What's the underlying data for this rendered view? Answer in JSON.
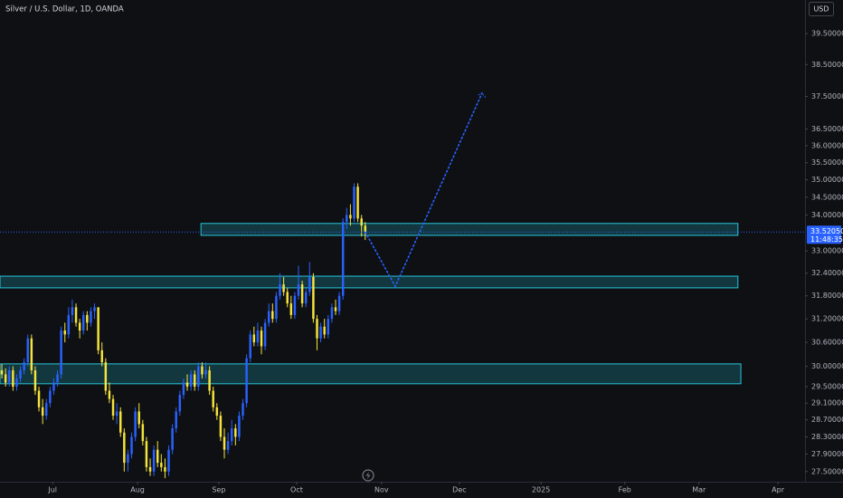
{
  "chart_data": {
    "type": "candlestick",
    "title": "Silver / U.S. Dollar, 1D, OANDA",
    "currency": "USD",
    "last_price_label": "33.52050",
    "countdown": "11:48:35",
    "up_color": "#2962ff",
    "down_color": "#f5e43b",
    "zone_color": "#26c6da",
    "projection_color": "#2962ff",
    "log_scale": true,
    "grid": false,
    "candles": [
      [
        29.9,
        30.05,
        29.7,
        29.8
      ],
      [
        29.8,
        29.95,
        29.5,
        29.6
      ],
      [
        29.6,
        30.0,
        29.5,
        29.9
      ],
      [
        29.9,
        30.0,
        29.4,
        29.5
      ],
      [
        29.5,
        29.8,
        29.4,
        29.7
      ],
      [
        29.7,
        30.0,
        29.6,
        29.9
      ],
      [
        29.9,
        30.2,
        29.8,
        30.1
      ],
      [
        30.1,
        30.8,
        30.0,
        30.7
      ],
      [
        30.7,
        30.8,
        29.8,
        29.9
      ],
      [
        29.9,
        30.0,
        29.3,
        29.4
      ],
      [
        29.4,
        29.5,
        28.9,
        29.0
      ],
      [
        29.0,
        29.2,
        28.6,
        28.8
      ],
      [
        28.8,
        29.2,
        28.7,
        29.1
      ],
      [
        29.1,
        29.5,
        29.0,
        29.4
      ],
      [
        29.4,
        29.7,
        29.3,
        29.6
      ],
      [
        29.6,
        29.9,
        29.5,
        29.8
      ],
      [
        29.8,
        31.0,
        29.7,
        30.9
      ],
      [
        30.9,
        31.1,
        30.6,
        30.8
      ],
      [
        30.8,
        31.5,
        30.7,
        31.3
      ],
      [
        31.3,
        31.7,
        31.1,
        31.5
      ],
      [
        31.5,
        31.6,
        31.0,
        31.1
      ],
      [
        31.1,
        31.2,
        30.7,
        30.9
      ],
      [
        30.9,
        31.4,
        30.8,
        31.3
      ],
      [
        31.3,
        31.4,
        30.9,
        31.1
      ],
      [
        31.1,
        31.5,
        31.0,
        31.4
      ],
      [
        31.4,
        31.6,
        31.2,
        31.5
      ],
      [
        31.5,
        31.5,
        30.3,
        30.4
      ],
      [
        30.4,
        30.6,
        30.0,
        30.1
      ],
      [
        30.1,
        30.2,
        29.3,
        29.4
      ],
      [
        29.4,
        29.6,
        29.1,
        29.2
      ],
      [
        29.2,
        29.3,
        28.7,
        28.8
      ],
      [
        28.8,
        29.1,
        28.6,
        28.9
      ],
      [
        28.9,
        29.0,
        28.3,
        28.4
      ],
      [
        28.4,
        28.5,
        27.5,
        27.7
      ],
      [
        27.7,
        28.0,
        27.5,
        27.9
      ],
      [
        27.9,
        28.4,
        27.8,
        28.3
      ],
      [
        28.3,
        29.0,
        28.2,
        28.9
      ],
      [
        28.9,
        29.1,
        28.5,
        28.6
      ],
      [
        28.6,
        28.7,
        28.1,
        28.2
      ],
      [
        28.2,
        28.3,
        27.5,
        27.6
      ],
      [
        27.6,
        27.8,
        27.4,
        27.5
      ],
      [
        27.5,
        28.1,
        27.4,
        28.0
      ],
      [
        28.0,
        28.2,
        27.6,
        27.7
      ],
      [
        27.7,
        27.9,
        27.5,
        27.6
      ],
      [
        27.6,
        27.8,
        27.35,
        27.5
      ],
      [
        27.5,
        28.1,
        27.4,
        28.0
      ],
      [
        28.0,
        28.6,
        27.9,
        28.5
      ],
      [
        28.5,
        29.0,
        28.4,
        28.9
      ],
      [
        28.9,
        29.4,
        28.8,
        29.3
      ],
      [
        29.3,
        29.7,
        29.2,
        29.6
      ],
      [
        29.6,
        29.8,
        29.4,
        29.5
      ],
      [
        29.5,
        29.9,
        29.4,
        29.8
      ],
      [
        29.8,
        29.9,
        29.4,
        29.5
      ],
      [
        29.5,
        30.1,
        29.4,
        30.0
      ],
      [
        30.0,
        30.1,
        29.7,
        29.8
      ],
      [
        29.8,
        30.1,
        29.7,
        29.9
      ],
      [
        29.9,
        30.0,
        29.3,
        29.4
      ],
      [
        29.4,
        29.5,
        28.9,
        29.0
      ],
      [
        29.0,
        29.1,
        28.7,
        28.8
      ],
      [
        28.8,
        28.9,
        28.2,
        28.3
      ],
      [
        28.3,
        28.5,
        27.8,
        28.0
      ],
      [
        28.0,
        28.4,
        27.9,
        28.2
      ],
      [
        28.2,
        28.7,
        28.1,
        28.5
      ],
      [
        28.5,
        28.6,
        28.1,
        28.3
      ],
      [
        28.3,
        28.9,
        28.2,
        28.8
      ],
      [
        28.8,
        29.2,
        28.7,
        29.1
      ],
      [
        29.1,
        30.3,
        29.0,
        30.2
      ],
      [
        30.2,
        30.9,
        30.1,
        30.8
      ],
      [
        30.8,
        31.0,
        30.5,
        30.6
      ],
      [
        30.6,
        31.1,
        30.5,
        30.9
      ],
      [
        30.9,
        31.0,
        30.3,
        30.5
      ],
      [
        30.5,
        31.2,
        30.4,
        31.1
      ],
      [
        31.1,
        31.6,
        31.0,
        31.4
      ],
      [
        31.4,
        31.6,
        31.1,
        31.2
      ],
      [
        31.2,
        31.9,
        31.1,
        31.8
      ],
      [
        31.8,
        32.4,
        31.7,
        32.1
      ],
      [
        32.1,
        32.3,
        31.8,
        31.9
      ],
      [
        31.9,
        32.0,
        31.5,
        31.6
      ],
      [
        31.6,
        31.8,
        31.2,
        31.3
      ],
      [
        31.3,
        31.9,
        31.2,
        31.8
      ],
      [
        31.8,
        32.6,
        31.7,
        32.1
      ],
      [
        32.1,
        32.2,
        31.5,
        31.6
      ],
      [
        31.6,
        32.0,
        31.5,
        31.9
      ],
      [
        31.9,
        32.7,
        31.8,
        32.3
      ],
      [
        32.3,
        32.4,
        31.1,
        31.2
      ],
      [
        31.2,
        31.3,
        30.4,
        30.7
      ],
      [
        30.7,
        31.1,
        30.6,
        31.0
      ],
      [
        31.0,
        31.2,
        30.7,
        30.8
      ],
      [
        30.8,
        31.3,
        30.7,
        31.2
      ],
      [
        31.2,
        31.6,
        31.1,
        31.5
      ],
      [
        31.5,
        31.7,
        31.3,
        31.4
      ],
      [
        31.4,
        31.9,
        31.3,
        31.8
      ],
      [
        31.8,
        33.9,
        31.7,
        33.8
      ],
      [
        33.8,
        34.2,
        33.6,
        34.0
      ],
      [
        34.0,
        34.3,
        33.7,
        33.9
      ],
      [
        33.9,
        34.9,
        33.8,
        34.8
      ],
      [
        34.8,
        34.9,
        33.8,
        33.9
      ],
      [
        33.9,
        34.0,
        33.4,
        33.7
      ],
      [
        33.7,
        33.8,
        33.3,
        33.5205
      ]
    ],
    "zones": [
      {
        "x": [
          53.7,
          198.5
        ],
        "y": [
          33.43,
          33.76
        ]
      },
      {
        "x": [
          -0.5,
          198.5
        ],
        "y": [
          32.01,
          32.32
        ]
      },
      {
        "x": [
          -0.5,
          199.3
        ],
        "y": [
          29.57,
          30.06
        ]
      }
    ],
    "projection": {
      "x": [
        98,
        106.1,
        129.5
      ],
      "y": [
        33.5205,
        32.05,
        37.6
      ]
    },
    "xlim": [
      -0.5,
      216.6
    ],
    "xticks": [
      {
        "value": 13.7,
        "label": "Jul"
      },
      {
        "value": 36.6,
        "label": "Aug"
      },
      {
        "value": 58.5,
        "label": "Sep"
      },
      {
        "value": 79.5,
        "label": "Oct"
      },
      {
        "value": 102.4,
        "label": "Nov"
      },
      {
        "value": 123.4,
        "label": "Dec"
      },
      {
        "value": 145.4,
        "label": "2025"
      },
      {
        "value": 168,
        "label": "Feb"
      },
      {
        "value": 188,
        "label": "Mar"
      },
      {
        "value": 209.3,
        "label": "Apr"
      }
    ],
    "ylim": [
      27.27,
      40.61
    ],
    "yticks": [
      {
        "value": 39.5,
        "label": "39.50000"
      },
      {
        "value": 38.5,
        "label": "38.50000"
      },
      {
        "value": 37.5,
        "label": "37.50000"
      },
      {
        "value": 36.5,
        "label": "36.50000"
      },
      {
        "value": 36.0,
        "label": "36.00000"
      },
      {
        "value": 35.5,
        "label": "35.50000"
      },
      {
        "value": 35.0,
        "label": "35.00000"
      },
      {
        "value": 34.5,
        "label": "34.50000"
      },
      {
        "value": 34.0,
        "label": "34.00000"
      },
      {
        "value": 33.0,
        "label": "33.00000"
      },
      {
        "value": 32.4,
        "label": "32.40000"
      },
      {
        "value": 31.8,
        "label": "31.80000"
      },
      {
        "value": 31.2,
        "label": "31.20000"
      },
      {
        "value": 30.6,
        "label": "30.60000"
      },
      {
        "value": 30.0,
        "label": "30.00000"
      },
      {
        "value": 29.5,
        "label": "29.50000"
      },
      {
        "value": 29.1,
        "label": "29.10000"
      },
      {
        "value": 28.7,
        "label": "28.70000"
      },
      {
        "value": 28.3,
        "label": "28.30000"
      },
      {
        "value": 27.9,
        "label": "27.90000"
      },
      {
        "value": 27.5,
        "label": "27.50000"
      }
    ]
  }
}
